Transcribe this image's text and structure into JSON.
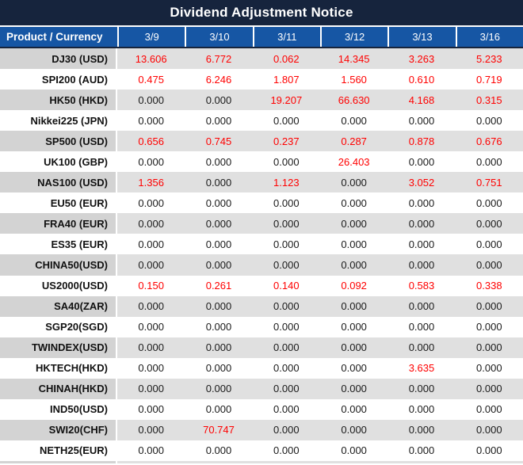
{
  "title": "Dividend Adjustment Notice",
  "colors": {
    "title_bg": "#16243d",
    "header_bg": "#1656a4",
    "header_divider": "#ffffff",
    "row_label_gray": "#d3d3d3",
    "row_data_gray": "#e0e0e0",
    "row_white": "#ffffff",
    "value_red": "#ff0000",
    "value_black": "#1a1a1a",
    "header_text": "#ffffff"
  },
  "table": {
    "header": {
      "product_col": "Product / Currency",
      "dates": [
        "3/9",
        "3/10",
        "3/11",
        "3/12",
        "3/13",
        "3/16"
      ]
    },
    "zero_display": "0.000",
    "rows": [
      {
        "label": "DJ30 (USD)",
        "values": [
          "13.606",
          "6.772",
          "0.062",
          "14.345",
          "3.263",
          "5.233"
        ]
      },
      {
        "label": "SPI200 (AUD)",
        "values": [
          "0.475",
          "6.246",
          "1.807",
          "1.560",
          "0.610",
          "0.719"
        ]
      },
      {
        "label": "HK50 (HKD)",
        "values": [
          "0.000",
          "0.000",
          "19.207",
          "66.630",
          "4.168",
          "0.315"
        ]
      },
      {
        "label": "Nikkei225 (JPN)",
        "values": [
          "0.000",
          "0.000",
          "0.000",
          "0.000",
          "0.000",
          "0.000"
        ]
      },
      {
        "label": "SP500 (USD)",
        "values": [
          "0.656",
          "0.745",
          "0.237",
          "0.287",
          "0.878",
          "0.676"
        ]
      },
      {
        "label": "UK100 (GBP)",
        "values": [
          "0.000",
          "0.000",
          "0.000",
          "26.403",
          "0.000",
          "0.000"
        ]
      },
      {
        "label": "NAS100 (USD)",
        "values": [
          "1.356",
          "0.000",
          "1.123",
          "0.000",
          "3.052",
          "0.751"
        ]
      },
      {
        "label": "EU50 (EUR)",
        "values": [
          "0.000",
          "0.000",
          "0.000",
          "0.000",
          "0.000",
          "0.000"
        ]
      },
      {
        "label": "FRA40 (EUR)",
        "values": [
          "0.000",
          "0.000",
          "0.000",
          "0.000",
          "0.000",
          "0.000"
        ]
      },
      {
        "label": "ES35 (EUR)",
        "values": [
          "0.000",
          "0.000",
          "0.000",
          "0.000",
          "0.000",
          "0.000"
        ]
      },
      {
        "label": "CHINA50(USD)",
        "values": [
          "0.000",
          "0.000",
          "0.000",
          "0.000",
          "0.000",
          "0.000"
        ]
      },
      {
        "label": "US2000(USD)",
        "values": [
          "0.150",
          "0.261",
          "0.140",
          "0.092",
          "0.583",
          "0.338"
        ]
      },
      {
        "label": "SA40(ZAR)",
        "values": [
          "0.000",
          "0.000",
          "0.000",
          "0.000",
          "0.000",
          "0.000"
        ]
      },
      {
        "label": "SGP20(SGD)",
        "values": [
          "0.000",
          "0.000",
          "0.000",
          "0.000",
          "0.000",
          "0.000"
        ]
      },
      {
        "label": "TWINDEX(USD)",
        "values": [
          "0.000",
          "0.000",
          "0.000",
          "0.000",
          "0.000",
          "0.000"
        ]
      },
      {
        "label": "HKTECH(HKD)",
        "values": [
          "0.000",
          "0.000",
          "0.000",
          "0.000",
          "3.635",
          "0.000"
        ]
      },
      {
        "label": "CHINAH(HKD)",
        "values": [
          "0.000",
          "0.000",
          "0.000",
          "0.000",
          "0.000",
          "0.000"
        ]
      },
      {
        "label": "IND50(USD)",
        "values": [
          "0.000",
          "0.000",
          "0.000",
          "0.000",
          "0.000",
          "0.000"
        ]
      },
      {
        "label": "SWI20(CHF)",
        "values": [
          "0.000",
          "70.747",
          "0.000",
          "0.000",
          "0.000",
          "0.000"
        ]
      },
      {
        "label": "NETH25(EUR)",
        "values": [
          "0.000",
          "0.000",
          "0.000",
          "0.000",
          "0.000",
          "0.000"
        ]
      }
    ]
  },
  "chart_data": {
    "type": "table",
    "title": "Dividend Adjustment Notice",
    "columns": [
      "Product / Currency",
      "3/9",
      "3/10",
      "3/11",
      "3/12",
      "3/13",
      "3/16"
    ],
    "rows": [
      [
        "DJ30 (USD)",
        13.606,
        6.772,
        0.062,
        14.345,
        3.263,
        5.233
      ],
      [
        "SPI200 (AUD)",
        0.475,
        6.246,
        1.807,
        1.56,
        0.61,
        0.719
      ],
      [
        "HK50 (HKD)",
        0.0,
        0.0,
        19.207,
        66.63,
        4.168,
        0.315
      ],
      [
        "Nikkei225 (JPN)",
        0.0,
        0.0,
        0.0,
        0.0,
        0.0,
        0.0
      ],
      [
        "SP500 (USD)",
        0.656,
        0.745,
        0.237,
        0.287,
        0.878,
        0.676
      ],
      [
        "UK100 (GBP)",
        0.0,
        0.0,
        0.0,
        26.403,
        0.0,
        0.0
      ],
      [
        "NAS100 (USD)",
        1.356,
        0.0,
        1.123,
        0.0,
        3.052,
        0.751
      ],
      [
        "EU50 (EUR)",
        0.0,
        0.0,
        0.0,
        0.0,
        0.0,
        0.0
      ],
      [
        "FRA40 (EUR)",
        0.0,
        0.0,
        0.0,
        0.0,
        0.0,
        0.0
      ],
      [
        "ES35 (EUR)",
        0.0,
        0.0,
        0.0,
        0.0,
        0.0,
        0.0
      ],
      [
        "CHINA50(USD)",
        0.0,
        0.0,
        0.0,
        0.0,
        0.0,
        0.0
      ],
      [
        "US2000(USD)",
        0.15,
        0.261,
        0.14,
        0.092,
        0.583,
        0.338
      ],
      [
        "SA40(ZAR)",
        0.0,
        0.0,
        0.0,
        0.0,
        0.0,
        0.0
      ],
      [
        "SGP20(SGD)",
        0.0,
        0.0,
        0.0,
        0.0,
        0.0,
        0.0
      ],
      [
        "TWINDEX(USD)",
        0.0,
        0.0,
        0.0,
        0.0,
        0.0,
        0.0
      ],
      [
        "HKTECH(HKD)",
        0.0,
        0.0,
        0.0,
        0.0,
        3.635,
        0.0
      ],
      [
        "CHINAH(HKD)",
        0.0,
        0.0,
        0.0,
        0.0,
        0.0,
        0.0
      ],
      [
        "IND50(USD)",
        0.0,
        0.0,
        0.0,
        0.0,
        0.0,
        0.0
      ],
      [
        "SWI20(CHF)",
        0.0,
        70.747,
        0.0,
        0.0,
        0.0,
        0.0
      ],
      [
        "NETH25(EUR)",
        0.0,
        0.0,
        0.0,
        0.0,
        0.0,
        0.0
      ]
    ],
    "notes": "Non-zero dividend adjustment values are rendered in red; zero values in black. Rows alternate gray/white starting with gray."
  }
}
